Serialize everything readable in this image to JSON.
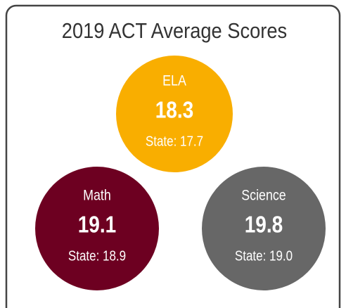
{
  "title": "2019 ACT Average Scores",
  "cards": [
    {
      "subject": "ELA",
      "score": "18.3",
      "state": "State: 17.7",
      "color": "#f9ae00"
    },
    {
      "subject": "Math",
      "score": "19.1",
      "state": "State: 18.9",
      "color": "#6d0021"
    },
    {
      "subject": "Science",
      "score": "19.8",
      "state": "State: 19.0",
      "color": "#676767"
    }
  ]
}
